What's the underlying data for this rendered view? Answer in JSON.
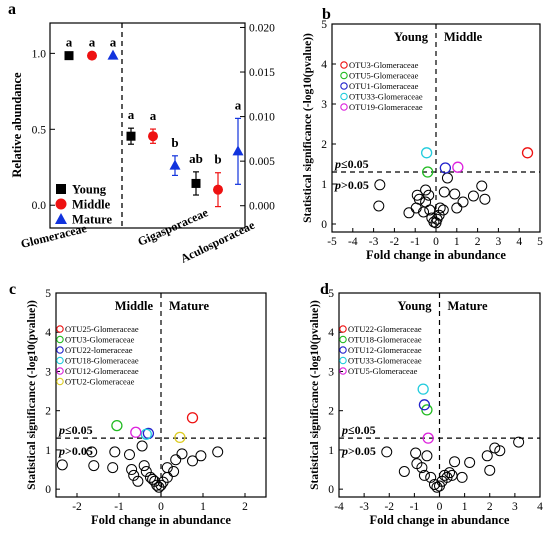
{
  "chart_data": [
    {
      "panel": "a",
      "type": "scatter",
      "ylabel": "Relative abundance",
      "ylim": [
        -0.15,
        1.2
      ],
      "yticks": [
        "0.0",
        "0.5",
        "1.0"
      ],
      "y2lim": [
        -0.0025,
        0.0205
      ],
      "y2ticks": [
        "0.000",
        "0.005",
        "0.010",
        "0.015",
        "0.020"
      ],
      "categories": [
        "Glomeraceae",
        "Gigasporaceae",
        "Aculosporaceae"
      ],
      "legend": [
        "Young",
        "Middle",
        "Mature"
      ],
      "colors": {
        "Young": "#000000",
        "Middle": "#ee1111",
        "Mature": "#1133dd"
      },
      "groups": [
        {
          "family": "Glomeraceae",
          "axis": "left",
          "letters": [
            "a",
            "a",
            "a"
          ],
          "means": [
            0.985,
            0.985,
            0.985
          ],
          "errors": [
            0.0,
            0.0,
            0.0
          ]
        },
        {
          "family": "Gigasporaceae",
          "axis": "right",
          "letters": [
            "a",
            "a",
            "b"
          ],
          "means": [
            0.0078,
            0.0078,
            0.0045
          ],
          "errors": [
            0.0009,
            0.0008,
            0.0011
          ]
        },
        {
          "family": "Aculosporaceae",
          "axis": "right",
          "letters": [
            "ab",
            "b",
            "a"
          ],
          "means": [
            0.0025,
            0.0018,
            0.0061
          ],
          "errors": [
            0.0013,
            0.0019,
            0.0037
          ]
        }
      ]
    },
    {
      "panel": "b",
      "type": "scatter",
      "xlabel": "Fold change in abundance",
      "ylabel": "Statistical significance (-log10(pvalue))",
      "xlim": [
        -5,
        5
      ],
      "ylim": [
        -0.2,
        5
      ],
      "xticks": [
        "-5",
        "-4",
        "-3",
        "-2",
        "-1",
        "0",
        "1",
        "2",
        "3",
        "4",
        "5"
      ],
      "yticks": [
        "0",
        "1",
        "2",
        "3",
        "4",
        "5"
      ],
      "left_label": "Young",
      "right_label": "Middle",
      "threshold_above": "p≤0.05",
      "threshold_below": "p>0.05",
      "legend": [
        {
          "name": "OTU3-Glomeraceae",
          "color": "#ee1111"
        },
        {
          "name": "OTU5-Glomeraceae",
          "color": "#22bb22"
        },
        {
          "name": "OTU1-Glomeraceae",
          "color": "#2222cc"
        },
        {
          "name": "OTU33-Glomeraceae",
          "color": "#22ccdd"
        },
        {
          "name": "OTU19-Glomeraceae",
          "color": "#dd22dd"
        }
      ],
      "highlighted": [
        {
          "x": 4.4,
          "y": 1.78,
          "color": "#ee1111"
        },
        {
          "x": -0.4,
          "y": 1.3,
          "color": "#22bb22"
        },
        {
          "x": 0.45,
          "y": 1.4,
          "color": "#2222cc"
        },
        {
          "x": -0.45,
          "y": 1.78,
          "color": "#22ccdd"
        },
        {
          "x": 1.05,
          "y": 1.42,
          "color": "#dd22dd"
        }
      ],
      "points": [
        [
          -2.7,
          0.98
        ],
        [
          -2.75,
          0.45
        ],
        [
          -1.3,
          0.28
        ],
        [
          -0.5,
          0.85
        ],
        [
          -0.8,
          0.62
        ],
        [
          -0.9,
          0.72
        ],
        [
          -0.95,
          0.4
        ],
        [
          -0.6,
          0.3
        ],
        [
          -0.5,
          0.55
        ],
        [
          -0.3,
          0.35
        ],
        [
          -0.2,
          0.15
        ],
        [
          -0.1,
          0.05
        ],
        [
          0.0,
          0.03
        ],
        [
          0.05,
          0.12
        ],
        [
          0.15,
          0.22
        ],
        [
          0.2,
          0.4
        ],
        [
          0.35,
          0.35
        ],
        [
          0.4,
          0.8
        ],
        [
          0.55,
          1.15
        ],
        [
          0.9,
          0.75
        ],
        [
          1.0,
          0.4
        ],
        [
          1.3,
          0.55
        ],
        [
          1.8,
          0.7
        ],
        [
          2.2,
          0.95
        ],
        [
          2.35,
          0.62
        ],
        [
          -0.35,
          0.72
        ]
      ]
    },
    {
      "panel": "c",
      "type": "scatter",
      "xlabel": "Fold change in abundance",
      "ylabel": "Statistical significance (-log10(pvalue))",
      "xlim": [
        -2.5,
        2.5
      ],
      "ylim": [
        -0.2,
        5
      ],
      "xticks": [
        "-2",
        "-1",
        "0",
        "1",
        "2"
      ],
      "yticks": [
        "0",
        "1",
        "2",
        "3",
        "4",
        "5"
      ],
      "left_label": "Middle",
      "right_label": "Mature",
      "threshold_above": "p≤0.05",
      "threshold_below": "p>0.05",
      "legend": [
        {
          "name": "OTU25-Glomeraceae",
          "color": "#ee1111"
        },
        {
          "name": "OTU3-Glomeraceae",
          "color": "#22bb22"
        },
        {
          "name": "OTU22-lomeraceae",
          "color": "#2222cc"
        },
        {
          "name": "OTU18-Glomeraceae",
          "color": "#22ccdd"
        },
        {
          "name": "OTU12-Glomeraceae",
          "color": "#dd22dd"
        },
        {
          "name": "OTU2-Glomeraceae",
          "color": "#ddcc22"
        }
      ],
      "highlighted": [
        {
          "x": 0.75,
          "y": 1.82,
          "color": "#ee1111"
        },
        {
          "x": -1.05,
          "y": 1.62,
          "color": "#22bb22"
        },
        {
          "x": -0.3,
          "y": 1.42,
          "color": "#2222cc"
        },
        {
          "x": -0.35,
          "y": 1.4,
          "color": "#22ccdd"
        },
        {
          "x": -0.6,
          "y": 1.45,
          "color": "#dd22dd"
        },
        {
          "x": 0.45,
          "y": 1.32,
          "color": "#ddcc22"
        }
      ],
      "points": [
        [
          -2.35,
          0.62
        ],
        [
          -1.6,
          0.6
        ],
        [
          -1.65,
          0.95
        ],
        [
          -1.1,
          0.95
        ],
        [
          -1.15,
          0.55
        ],
        [
          -0.75,
          0.88
        ],
        [
          -0.7,
          0.5
        ],
        [
          -0.65,
          0.35
        ],
        [
          -0.45,
          1.1
        ],
        [
          -0.4,
          0.6
        ],
        [
          -0.35,
          0.45
        ],
        [
          -0.25,
          0.3
        ],
        [
          -0.15,
          0.2
        ],
        [
          -0.1,
          0.1
        ],
        [
          -0.05,
          0.05
        ],
        [
          0.0,
          0.1
        ],
        [
          0.05,
          0.18
        ],
        [
          0.15,
          0.3
        ],
        [
          0.3,
          0.45
        ],
        [
          0.35,
          0.75
        ],
        [
          0.5,
          0.9
        ],
        [
          0.75,
          0.72
        ],
        [
          0.95,
          0.85
        ],
        [
          1.35,
          0.95
        ],
        [
          0.15,
          0.55
        ],
        [
          -0.55,
          0.2
        ],
        [
          -0.2,
          0.25
        ]
      ]
    },
    {
      "panel": "d",
      "type": "scatter",
      "xlabel": "Fold change in abundance",
      "ylabel": "Statistical significance (-log10(pvalue))",
      "xlim": [
        -4,
        4
      ],
      "ylim": [
        -0.2,
        5
      ],
      "xticks": [
        "-4",
        "-3",
        "-2",
        "-1",
        "0",
        "1",
        "2",
        "3",
        "4"
      ],
      "yticks": [
        "0",
        "1",
        "2",
        "3",
        "4",
        "5"
      ],
      "left_label": "Young",
      "right_label": "Mature",
      "threshold_above": "p≤0.05",
      "threshold_below": "p>0.05",
      "legend": [
        {
          "name": "OTU22-Glomeraceae",
          "color": "#ee1111"
        },
        {
          "name": "OTU18-Glomeraceae",
          "color": "#22bb22"
        },
        {
          "name": "OTU12-Glomeraceae",
          "color": "#2222cc"
        },
        {
          "name": "OTU33-Glomeraceae",
          "color": "#22ccdd"
        },
        {
          "name": "OTU5-Glomeraceae",
          "color": "#dd22dd"
        }
      ],
      "highlighted": [
        {
          "x": -0.5,
          "y": 2.02,
          "color": "#22bb22"
        },
        {
          "x": -0.6,
          "y": 2.15,
          "color": "#2222cc"
        },
        {
          "x": -0.65,
          "y": 2.55,
          "color": "#22ccdd"
        },
        {
          "x": -0.45,
          "y": 1.3,
          "color": "#dd22dd"
        }
      ],
      "points": [
        [
          -2.1,
          0.95
        ],
        [
          -1.4,
          0.45
        ],
        [
          -0.95,
          0.92
        ],
        [
          -0.9,
          0.65
        ],
        [
          -0.6,
          0.35
        ],
        [
          -0.5,
          0.85
        ],
        [
          -0.35,
          0.3
        ],
        [
          -0.2,
          0.12
        ],
        [
          -0.1,
          0.05
        ],
        [
          0.0,
          0.08
        ],
        [
          0.1,
          0.2
        ],
        [
          0.2,
          0.35
        ],
        [
          0.3,
          0.3
        ],
        [
          0.5,
          0.35
        ],
        [
          0.6,
          0.7
        ],
        [
          0.9,
          0.3
        ],
        [
          1.2,
          0.68
        ],
        [
          1.9,
          0.85
        ],
        [
          2.0,
          0.48
        ],
        [
          2.2,
          1.05
        ],
        [
          2.4,
          0.98
        ],
        [
          3.15,
          1.2
        ],
        [
          -0.7,
          0.55
        ],
        [
          0.4,
          0.42
        ]
      ]
    }
  ]
}
